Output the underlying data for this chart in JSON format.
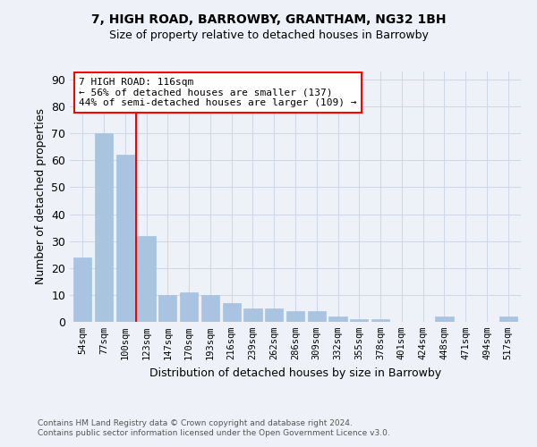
{
  "title": "7, HIGH ROAD, BARROWBY, GRANTHAM, NG32 1BH",
  "subtitle": "Size of property relative to detached houses in Barrowby",
  "xlabel": "Distribution of detached houses by size in Barrowby",
  "ylabel": "Number of detached properties",
  "footnote1": "Contains HM Land Registry data © Crown copyright and database right 2024.",
  "footnote2": "Contains public sector information licensed under the Open Government Licence v3.0.",
  "categories": [
    "54sqm",
    "77sqm",
    "100sqm",
    "123sqm",
    "147sqm",
    "170sqm",
    "193sqm",
    "216sqm",
    "239sqm",
    "262sqm",
    "286sqm",
    "309sqm",
    "332sqm",
    "355sqm",
    "378sqm",
    "401sqm",
    "424sqm",
    "448sqm",
    "471sqm",
    "494sqm",
    "517sqm"
  ],
  "values": [
    24,
    70,
    62,
    32,
    10,
    11,
    10,
    7,
    5,
    5,
    4,
    4,
    2,
    1,
    1,
    0,
    0,
    2,
    0,
    0,
    2
  ],
  "bar_color": "#a8c4e0",
  "bar_edge_color": "#a8c4e0",
  "grid_color": "#d0d8e8",
  "background_color": "#eef2f8",
  "vline_x": 2.5,
  "vline_color": "red",
  "annotation_text": "7 HIGH ROAD: 116sqm\n← 56% of detached houses are smaller (137)\n44% of semi-detached houses are larger (109) →",
  "annotation_box_color": "white",
  "annotation_box_edge_color": "red",
  "ylim": [
    0,
    93
  ],
  "yticks": [
    0,
    10,
    20,
    30,
    40,
    50,
    60,
    70,
    80,
    90
  ]
}
